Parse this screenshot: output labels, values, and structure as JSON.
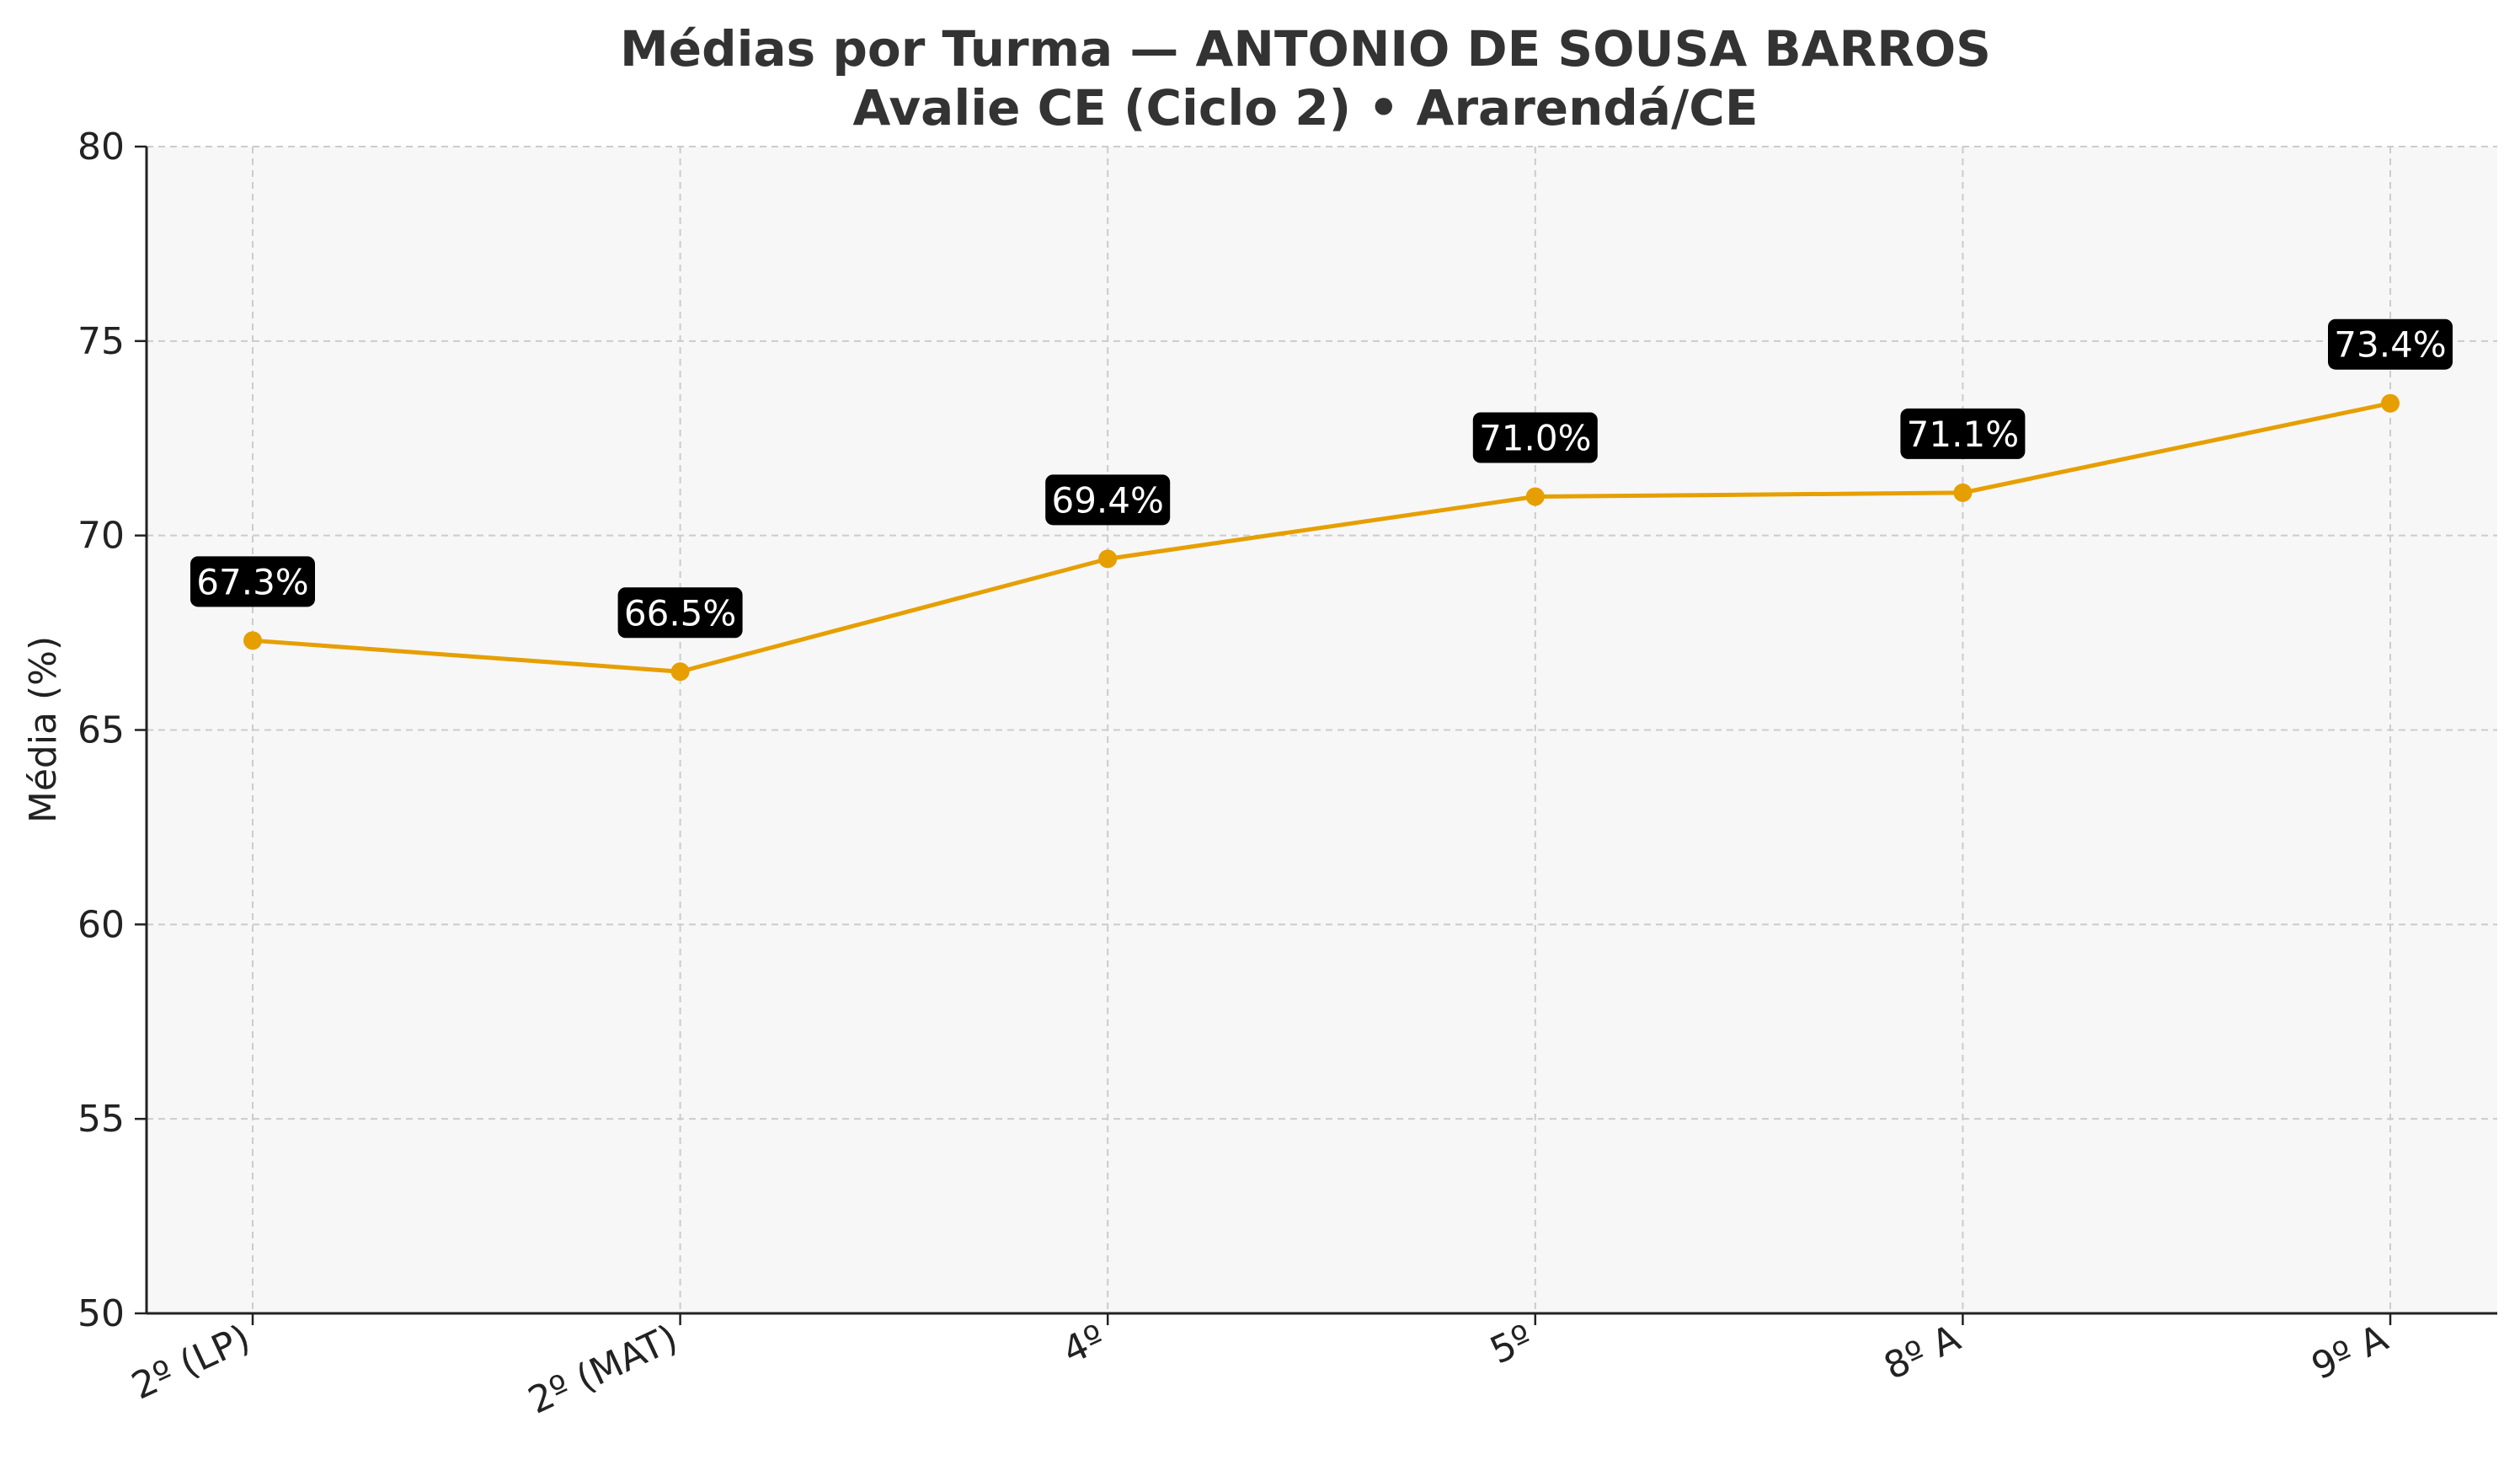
{
  "chart_data": {
    "type": "line",
    "title": "Médias por Turma — ANTONIO DE SOUSA BARROS",
    "subtitle": "Avalie CE (Ciclo 2) • Ararendá/CE",
    "xlabel": "",
    "ylabel": "Média (%)",
    "categories": [
      "2º (LP)",
      "2º (MAT)",
      "4º",
      "5º",
      "8º A",
      "9º A"
    ],
    "values": [
      67.3,
      66.5,
      69.4,
      71.0,
      71.1,
      73.4
    ],
    "data_labels": [
      "67.3%",
      "66.5%",
      "69.4%",
      "71.0%",
      "71.1%",
      "73.4%"
    ],
    "ylim": [
      50,
      80
    ],
    "yticks": [
      "50",
      "55",
      "60",
      "65",
      "70",
      "75",
      "80"
    ],
    "grid": true,
    "legend": "none",
    "colors": {
      "line": "#E69F00",
      "plot_background": "#F7F7F7",
      "grid": "#CCCCCC",
      "label_background": "#000000",
      "label_text": "#FFFFFF"
    }
  }
}
